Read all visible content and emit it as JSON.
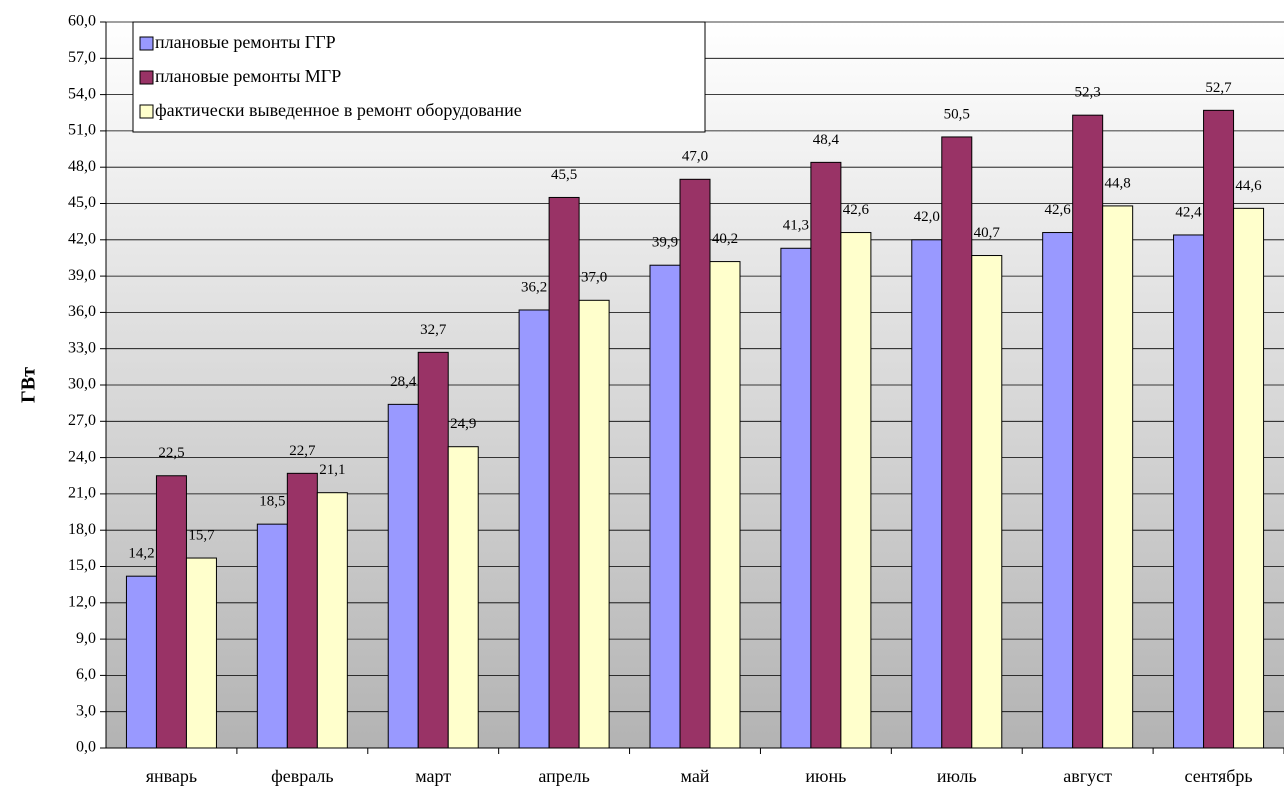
{
  "chart_data": {
    "type": "bar",
    "y_label": "ГВт",
    "categories": [
      "январь",
      "февраль",
      "март",
      "апрель",
      "май",
      "июнь",
      "июль",
      "август",
      "сентябрь"
    ],
    "series": [
      {
        "name": "плановые ремонты ГГР",
        "color": "#9999ff",
        "values": [
          14.2,
          18.5,
          28.4,
          36.2,
          39.9,
          41.3,
          42.0,
          42.6,
          42.4
        ],
        "value_labels": [
          "14,2",
          "18,5",
          "28,4",
          "36,2",
          "39,9",
          "41,3",
          "42,0",
          "42,6",
          "42,4"
        ]
      },
      {
        "name": "плановые ремонты МГР",
        "color": "#993366",
        "values": [
          22.5,
          22.7,
          32.7,
          45.5,
          47.0,
          48.4,
          50.5,
          52.3,
          52.7
        ],
        "value_labels": [
          "22,5",
          "22,7",
          "32,7",
          "45,5",
          "47,0",
          "48,4",
          "50,5",
          "52,3",
          "52,7"
        ]
      },
      {
        "name": "фактически выведенное в ремонт оборудование",
        "color": "#ffffcc",
        "values": [
          15.7,
          21.1,
          24.9,
          37.0,
          40.2,
          42.6,
          40.7,
          44.8,
          44.6
        ],
        "value_labels": [
          "15,7",
          "21,1",
          "24,9",
          "37,0",
          "40,2",
          "42,6",
          "40,7",
          "44,8",
          "44,6"
        ]
      }
    ],
    "ylim": [
      0,
      60
    ],
    "yticks": [
      {
        "value": 0,
        "label": "0,0"
      },
      {
        "value": 3,
        "label": "3,0"
      },
      {
        "value": 6,
        "label": "6,0"
      },
      {
        "value": 9,
        "label": "9,0"
      },
      {
        "value": 12,
        "label": "12,0"
      },
      {
        "value": 15,
        "label": "15,0"
      },
      {
        "value": 18,
        "label": "18,0"
      },
      {
        "value": 21,
        "label": "21,0"
      },
      {
        "value": 24,
        "label": "24,0"
      },
      {
        "value": 27,
        "label": "27,0"
      },
      {
        "value": 30,
        "label": "30,0"
      },
      {
        "value": 33,
        "label": "33,0"
      },
      {
        "value": 36,
        "label": "36,0"
      },
      {
        "value": 39,
        "label": "39,0"
      },
      {
        "value": 42,
        "label": "42,0"
      },
      {
        "value": 45,
        "label": "45,0"
      },
      {
        "value": 48,
        "label": "48,0"
      },
      {
        "value": 51,
        "label": "51,0"
      },
      {
        "value": 54,
        "label": "54,0"
      },
      {
        "value": 57,
        "label": "57,0"
      },
      {
        "value": 60,
        "label": "60,0"
      }
    ],
    "grid": true,
    "legend": "top-left"
  }
}
